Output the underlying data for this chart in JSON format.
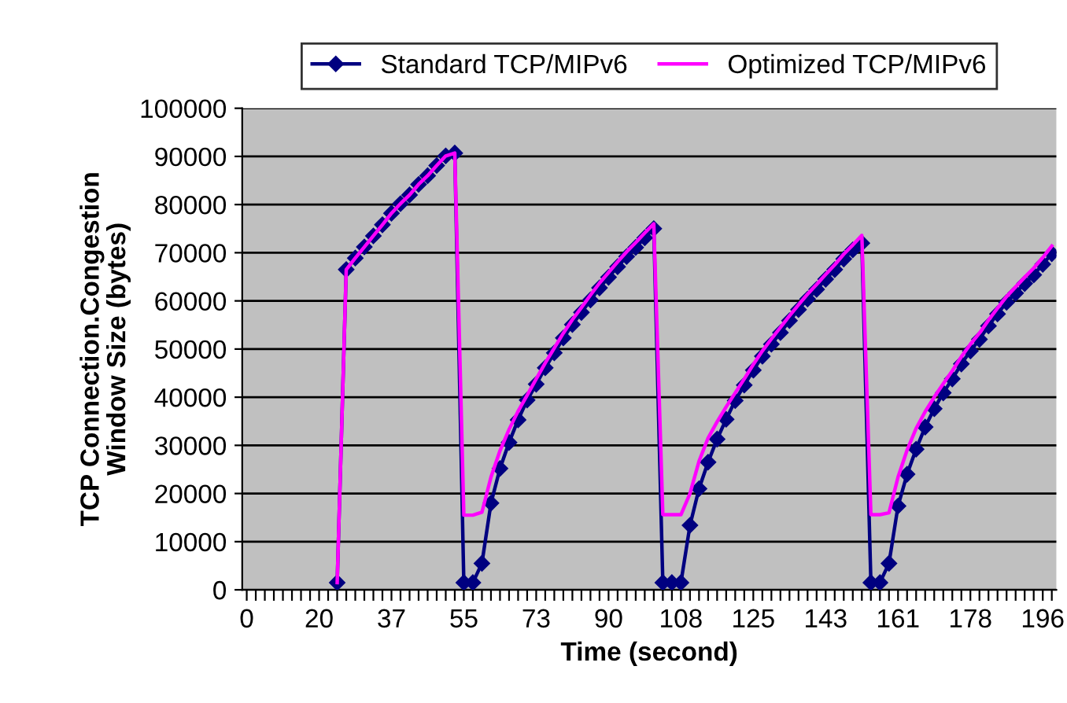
{
  "chart_data": {
    "type": "line",
    "xlabel": "Time (second)",
    "ylabel": "TCP Connection.Congestion\nWindow Size (bytes)",
    "categories": [
      "0",
      null,
      null,
      null,
      null,
      null,
      null,
      null,
      "20",
      null,
      null,
      null,
      null,
      null,
      null,
      null,
      "37",
      null,
      null,
      null,
      null,
      null,
      null,
      null,
      "55",
      null,
      null,
      null,
      null,
      null,
      null,
      null,
      "73",
      null,
      null,
      null,
      null,
      null,
      null,
      null,
      "90",
      null,
      null,
      null,
      null,
      null,
      null,
      null,
      "108",
      null,
      null,
      null,
      null,
      null,
      null,
      null,
      "125",
      null,
      null,
      null,
      null,
      null,
      null,
      null,
      "143",
      null,
      null,
      null,
      null,
      null,
      null,
      null,
      "161",
      null,
      null,
      null,
      null,
      null,
      null,
      null,
      "178",
      null,
      null,
      null,
      null,
      null,
      null,
      null,
      "196",
      null
    ],
    "series": [
      {
        "name": "Standard TCP/MIPv6",
        "color": "#000080",
        "marker": "diamond",
        "values": [
          null,
          null,
          null,
          null,
          null,
          null,
          null,
          null,
          null,
          null,
          1500,
          66500,
          68900,
          71200,
          73500,
          75800,
          78200,
          80200,
          82000,
          84200,
          86000,
          88100,
          90100,
          90700,
          1500,
          1500,
          5500,
          18000,
          25200,
          30600,
          35300,
          39400,
          42700,
          46100,
          49200,
          52300,
          55100,
          57600,
          60200,
          62700,
          64900,
          67100,
          69200,
          71100,
          73100,
          75000,
          1500,
          1500,
          1500,
          13400,
          21000,
          26500,
          31300,
          35400,
          39300,
          42500,
          45600,
          48500,
          51000,
          53400,
          55900,
          58200,
          60400,
          62400,
          64500,
          66500,
          68700,
          70600,
          72000,
          1500,
          1500,
          5500,
          17400,
          24000,
          29200,
          33800,
          37600,
          40900,
          43800,
          46900,
          49600,
          52000,
          54800,
          57300,
          59700,
          61600,
          63600,
          65400,
          67600,
          69800
        ]
      },
      {
        "name": "Optimized TCP/MIPv6",
        "color": "#ff00ff",
        "marker": "none",
        "values": [
          null,
          null,
          null,
          null,
          null,
          null,
          null,
          null,
          null,
          null,
          1500,
          66500,
          68900,
          71200,
          73500,
          75800,
          78200,
          80200,
          82000,
          84200,
          86000,
          88100,
          90100,
          90700,
          15500,
          15500,
          16100,
          23400,
          28900,
          33300,
          37100,
          40400,
          43800,
          47100,
          50200,
          53300,
          56100,
          58600,
          61200,
          63700,
          65900,
          68100,
          70200,
          72100,
          74100,
          76000,
          15600,
          15600,
          15600,
          20000,
          26700,
          31500,
          34900,
          38000,
          40900,
          43800,
          46800,
          49600,
          52100,
          54500,
          56900,
          59200,
          61400,
          63400,
          65500,
          67500,
          69700,
          71600,
          73600,
          15600,
          15600,
          16000,
          23400,
          29000,
          33500,
          37000,
          40000,
          42800,
          45500,
          48400,
          51000,
          53300,
          56000,
          58500,
          60900,
          62900,
          64900,
          66800,
          69000,
          71400
        ]
      }
    ],
    "ylim": [
      0,
      100000
    ],
    "yticks": [
      0,
      10000,
      20000,
      30000,
      40000,
      50000,
      60000,
      70000,
      80000,
      90000,
      100000
    ],
    "grid": "y",
    "legend": "top",
    "line_style": "solid"
  }
}
